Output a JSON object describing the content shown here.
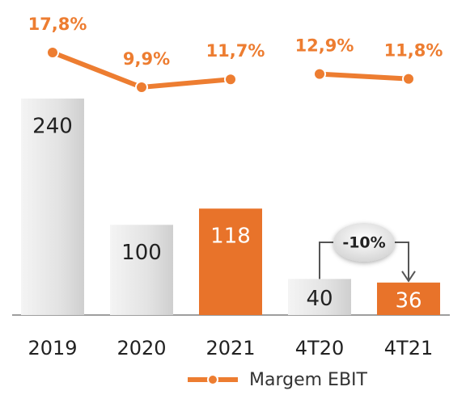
{
  "chart_data": {
    "type": "bar_line",
    "categories": [
      "2019",
      "2020",
      "2021",
      "4T20",
      "4T21"
    ],
    "bars": {
      "values": [
        240,
        100,
        118,
        40,
        36
      ],
      "colors": [
        "#d9d9d9",
        "#d9d9d9",
        "#e8732a",
        "#d9d9d9",
        "#e8732a"
      ]
    },
    "series": [
      {
        "name": "Margem EBIT",
        "color": "#ed7d31",
        "values": [
          17.8,
          9.9,
          11.7,
          12.9,
          11.8
        ],
        "value_labels": [
          "17,8%",
          "9,9%",
          "11,7%",
          "12,9%",
          "11,8%"
        ]
      }
    ],
    "line_gap_after": 2,
    "annotation": "-10%",
    "legend": "bottom"
  }
}
